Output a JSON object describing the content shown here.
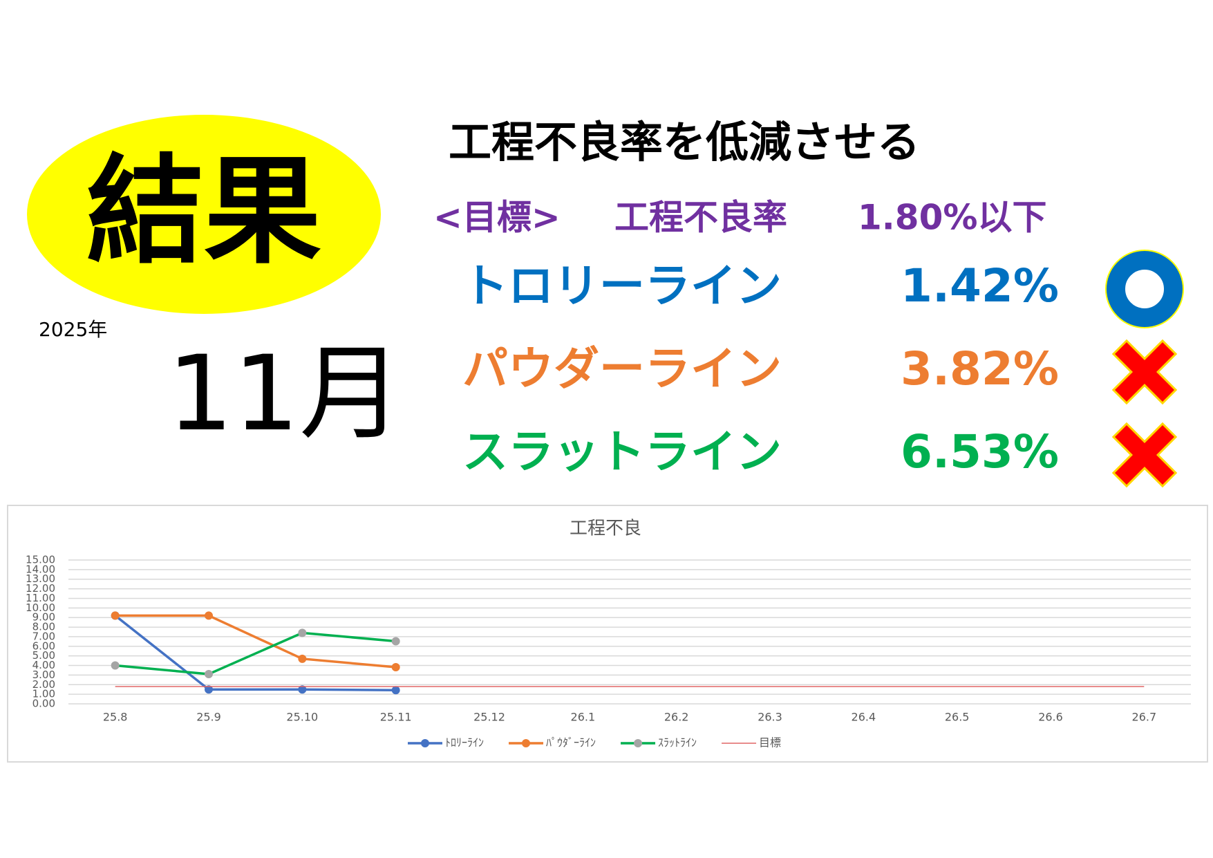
{
  "badge": "結果",
  "year": "2025年",
  "month": "11月",
  "heading": "工程不良率を低減させる",
  "target": {
    "label": "<目標>",
    "item": "工程不良率",
    "value": "1.80%以下"
  },
  "lines": [
    {
      "name": "トロリーライン",
      "rate": "1.42%",
      "color": "#0070c0"
    },
    {
      "name": "パウダーライン",
      "rate": "3.82%",
      "color": "#ed7d31"
    },
    {
      "name": "スラットライン",
      "rate": "6.53%",
      "color": "#00b050"
    }
  ],
  "chart_data": {
    "type": "line",
    "title": "工程不良",
    "categories": [
      "25.8",
      "25.9",
      "25.10",
      "25.11",
      "25.12",
      "26.1",
      "26.2",
      "26.3",
      "26.4",
      "26.5",
      "26.6",
      "26.7"
    ],
    "series": [
      {
        "name": "ﾄﾛﾘｰﾗｲﾝ",
        "color": "#4472c4",
        "marker": "#4472c4",
        "values": [
          9.2,
          1.5,
          1.5,
          1.42,
          null,
          null,
          null,
          null,
          null,
          null,
          null,
          null
        ]
      },
      {
        "name": "ﾊﾟｳﾀﾞｰﾗｲﾝ",
        "color": "#ed7d31",
        "marker": "#ed7d31",
        "values": [
          9.2,
          9.2,
          4.7,
          3.82,
          null,
          null,
          null,
          null,
          null,
          null,
          null,
          null
        ]
      },
      {
        "name": "ｽﾗｯﾄﾗｲﾝ",
        "color": "#00b050",
        "marker": "#a5a5a5",
        "values": [
          4.0,
          3.1,
          7.4,
          6.53,
          null,
          null,
          null,
          null,
          null,
          null,
          null,
          null
        ]
      },
      {
        "name": "目標",
        "color": "#e06666",
        "values": [
          1.8,
          1.8,
          1.8,
          1.8,
          1.8,
          1.8,
          1.8,
          1.8,
          1.8,
          1.8,
          1.8,
          1.8
        ]
      }
    ],
    "ylim": [
      0,
      15
    ],
    "yticks": [
      {
        "value": 0,
        "label": "0.00"
      },
      {
        "value": 1,
        "label": "1.00"
      },
      {
        "value": 2,
        "label": "2.00"
      },
      {
        "value": 3,
        "label": "3.00"
      },
      {
        "value": 4,
        "label": "4.00"
      },
      {
        "value": 5,
        "label": "5.00"
      },
      {
        "value": 6,
        "label": "6.00"
      },
      {
        "value": 7,
        "label": "7.00"
      },
      {
        "value": 8,
        "label": "8.00"
      },
      {
        "value": 9,
        "label": "9.00"
      },
      {
        "value": 10,
        "label": "10.00"
      },
      {
        "value": 11,
        "label": "11.00"
      },
      {
        "value": 12,
        "label": "12.00"
      },
      {
        "value": 13,
        "label": "13.00"
      },
      {
        "value": 14,
        "label": "14.00"
      },
      {
        "value": 15,
        "label": "15.00"
      }
    ],
    "grid": true,
    "legend": "bottom"
  }
}
